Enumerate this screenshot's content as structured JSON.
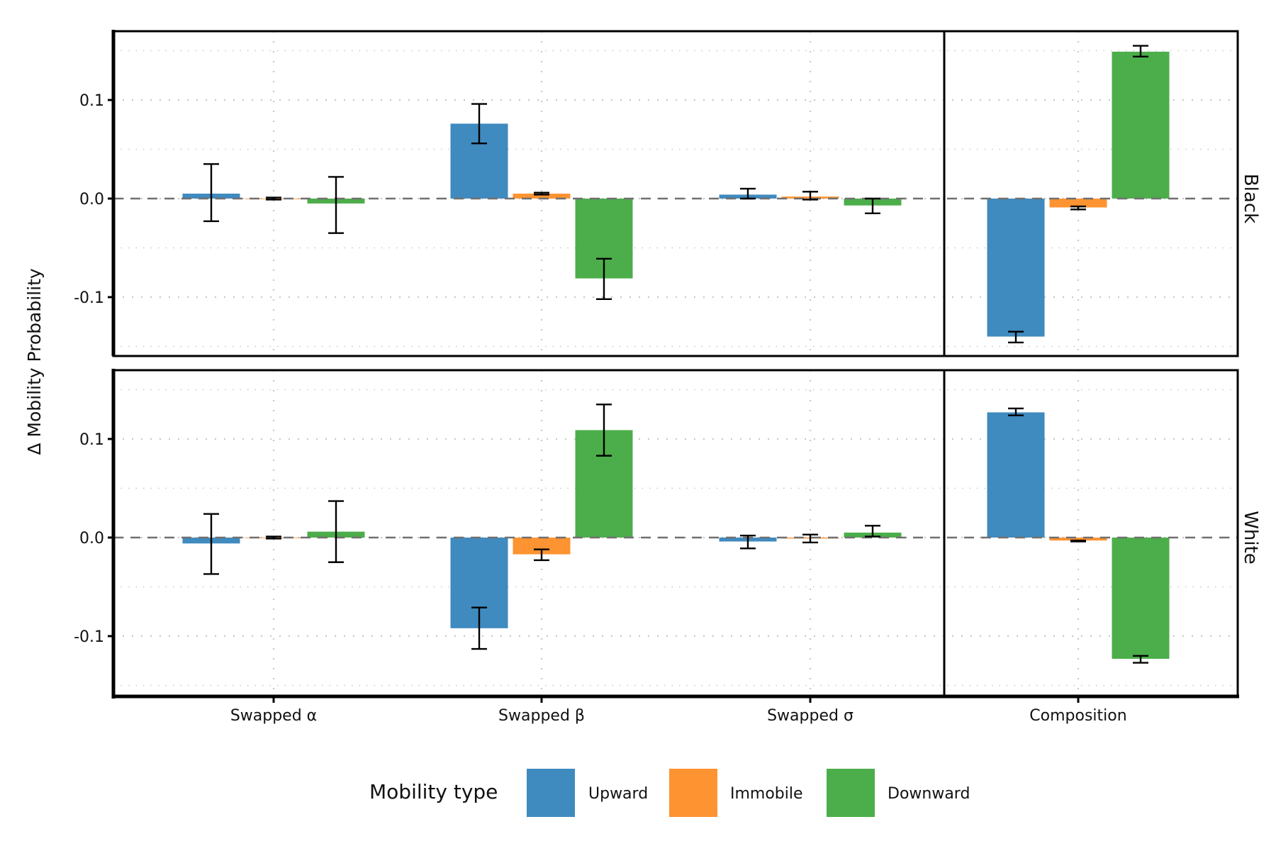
{
  "chart_data": {
    "type": "bar",
    "title": "",
    "ylabel": "Δ Mobility Probability",
    "xlabel": "",
    "ylim": [
      -0.16,
      0.17
    ],
    "yticks": [
      -0.1,
      0.0,
      0.1
    ],
    "ytick_labels": [
      "-0.1",
      "0.0",
      "0.1"
    ],
    "grid": "dotted",
    "reference_line": {
      "y": 0.0,
      "style": "dashed"
    },
    "categories": [
      "Swapped α",
      "Swapped β",
      "Swapped σ",
      "Composition"
    ],
    "facet_separator_after_category": 2,
    "legend": {
      "title": "Mobility type",
      "placement": "bottom",
      "entries": [
        {
          "name": "Upward",
          "color": "#3f8abf"
        },
        {
          "name": "Immobile",
          "color": "#fe9331"
        },
        {
          "name": "Downward",
          "color": "#4cae4a"
        }
      ]
    },
    "panels": [
      {
        "label": "Black",
        "series": [
          {
            "name": "Upward",
            "values": [
              0.005,
              0.076,
              0.004,
              -0.14
            ],
            "err_low": [
              -0.023,
              0.056,
              0.0,
              -0.146
            ],
            "err_high": [
              0.035,
              0.096,
              0.01,
              -0.135
            ]
          },
          {
            "name": "Immobile",
            "values": [
              0.0,
              0.005,
              0.002,
              -0.009
            ],
            "err_low": [
              -0.001,
              0.004,
              -0.001,
              -0.011
            ],
            "err_high": [
              0.001,
              0.006,
              0.007,
              -0.008
            ]
          },
          {
            "name": "Downward",
            "values": [
              -0.005,
              -0.081,
              -0.007,
              0.149
            ],
            "err_low": [
              -0.035,
              -0.102,
              -0.015,
              0.144
            ],
            "err_high": [
              0.022,
              -0.061,
              0.0,
              0.155
            ]
          }
        ]
      },
      {
        "label": "White",
        "series": [
          {
            "name": "Upward",
            "values": [
              -0.006,
              -0.092,
              -0.004,
              0.127
            ],
            "err_low": [
              -0.037,
              -0.113,
              -0.011,
              0.124
            ],
            "err_high": [
              0.024,
              -0.071,
              0.002,
              0.131
            ]
          },
          {
            "name": "Immobile",
            "values": [
              0.0,
              -0.017,
              -0.001,
              -0.003
            ],
            "err_low": [
              -0.001,
              -0.023,
              -0.005,
              -0.004
            ],
            "err_high": [
              0.001,
              -0.012,
              0.003,
              -0.003
            ]
          },
          {
            "name": "Downward",
            "values": [
              0.006,
              0.109,
              0.005,
              -0.123
            ],
            "err_low": [
              -0.025,
              0.083,
              0.001,
              -0.127
            ],
            "err_high": [
              0.037,
              0.135,
              0.012,
              -0.12
            ]
          }
        ]
      }
    ]
  }
}
